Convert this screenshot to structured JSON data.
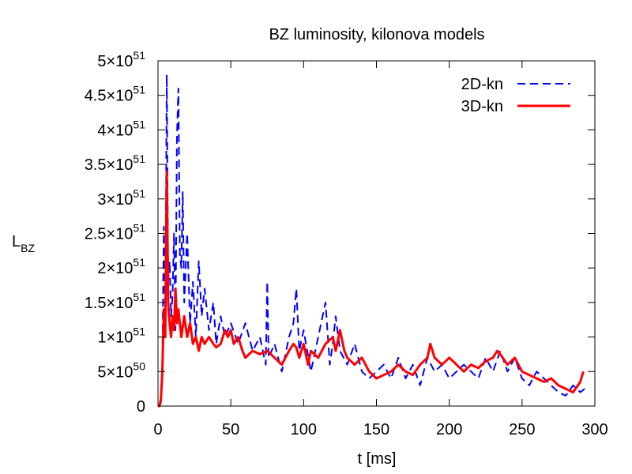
{
  "chart_data": {
    "type": "line",
    "title": "BZ luminosity, kilonova models",
    "xlabel": "t [ms]",
    "ylabel": {
      "main": "L",
      "sub": "BZ"
    },
    "xlim": [
      0,
      300
    ],
    "ylim": [
      0,
      5e+51
    ],
    "x_ticks": [
      {
        "value": 0,
        "label": "0"
      },
      {
        "value": 50,
        "label": "50"
      },
      {
        "value": 100,
        "label": "100"
      },
      {
        "value": 150,
        "label": "150"
      },
      {
        "value": 200,
        "label": "200"
      },
      {
        "value": 250,
        "label": "250"
      },
      {
        "value": 300,
        "label": "300"
      }
    ],
    "y_ticks": [
      {
        "value": 0,
        "mant": "0",
        "exp": ""
      },
      {
        "value": 5e+50,
        "mant": "5×10",
        "exp": "50"
      },
      {
        "value": 1e+51,
        "mant": "1×10",
        "exp": "51"
      },
      {
        "value": 1.5e+51,
        "mant": "1.5×10",
        "exp": "51"
      },
      {
        "value": 2e+51,
        "mant": "2×10",
        "exp": "51"
      },
      {
        "value": 2.5e+51,
        "mant": "2.5×10",
        "exp": "51"
      },
      {
        "value": 3e+51,
        "mant": "3×10",
        "exp": "51"
      },
      {
        "value": 3.5e+51,
        "mant": "3.5×10",
        "exp": "51"
      },
      {
        "value": 4e+51,
        "mant": "4×10",
        "exp": "51"
      },
      {
        "value": 4.5e+51,
        "mant": "4.5×10",
        "exp": "51"
      },
      {
        "value": 5e+51,
        "mant": "5×10",
        "exp": "51"
      }
    ],
    "grid": false,
    "legend_position": "top-right",
    "series": [
      {
        "name": "2D-kn",
        "color": "#0000ff",
        "dash": "dashed",
        "x": [
          0,
          1,
          2,
          3,
          4,
          5,
          6,
          7,
          8,
          9,
          10,
          11,
          12,
          13,
          14,
          15,
          16,
          17,
          18,
          20,
          22,
          24,
          26,
          28,
          30,
          32,
          35,
          38,
          40,
          43,
          46,
          50,
          55,
          60,
          65,
          70,
          74,
          75,
          76,
          80,
          85,
          90,
          93,
          95,
          97,
          100,
          105,
          110,
          115,
          118,
          120,
          122,
          125,
          130,
          135,
          140,
          145,
          150,
          155,
          160,
          165,
          170,
          175,
          180,
          185,
          190,
          195,
          200,
          205,
          210,
          215,
          220,
          225,
          230,
          235,
          240,
          245,
          250,
          255,
          260,
          265,
          270,
          275,
          280,
          285,
          290,
          293
        ],
        "y": [
          0,
          0,
          5e+49,
          6e+50,
          2.6e+51,
          1.2e+51,
          4.8e+51,
          1.8e+51,
          2.1e+51,
          1.3e+51,
          1.6e+51,
          2.5e+51,
          1.1e+51,
          3.9e+51,
          4.6e+51,
          2.2e+51,
          2e+51,
          3.1e+51,
          1.5e+51,
          2.5e+51,
          1.2e+51,
          1.8e+51,
          1e+51,
          2.1e+51,
          1.3e+51,
          1.7e+51,
          1.1e+51,
          1.5e+51,
          9e+50,
          1.3e+51,
          1e+51,
          1.2e+51,
          9e+50,
          1.2e+51,
          8e+50,
          1e+51,
          6e+50,
          1.8e+51,
          7e+50,
          9e+50,
          5e+50,
          1e+51,
          1.2e+51,
          1.7e+51,
          8e+50,
          1.1e+51,
          5e+50,
          1e+51,
          1.5e+51,
          6e+50,
          9e+50,
          1.3e+51,
          8e+50,
          6e+50,
          9e+50,
          5e+50,
          4e+50,
          5e+50,
          6e+50,
          4e+50,
          7e+50,
          4e+50,
          6e+50,
          3e+50,
          7e+50,
          5e+50,
          6e+50,
          4e+50,
          5e+50,
          6e+50,
          5e+50,
          4e+50,
          7e+50,
          5e+50,
          8e+50,
          5e+50,
          7e+50,
          4e+50,
          3e+50,
          5e+50,
          4e+50,
          3e+50,
          2e+50,
          1.5e+50,
          3e+50,
          2e+50,
          2.5e+50
        ]
      },
      {
        "name": "3D-kn",
        "color": "#ff0000",
        "dash": "solid",
        "x": [
          0,
          1,
          2,
          3,
          4,
          5,
          6,
          7,
          8,
          9,
          10,
          11,
          12,
          13,
          14,
          16,
          18,
          20,
          22,
          24,
          26,
          28,
          30,
          32,
          35,
          38,
          40,
          43,
          46,
          48,
          50,
          52,
          55,
          58,
          60,
          65,
          70,
          75,
          80,
          85,
          90,
          93,
          95,
          97,
          100,
          103,
          105,
          110,
          115,
          120,
          122,
          125,
          128,
          130,
          135,
          140,
          145,
          150,
          155,
          160,
          165,
          170,
          175,
          180,
          185,
          187,
          190,
          195,
          200,
          205,
          210,
          215,
          220,
          225,
          230,
          233,
          235,
          240,
          245,
          250,
          255,
          260,
          265,
          270,
          275,
          280,
          285,
          290,
          292
        ],
        "y": [
          0,
          0,
          1e+50,
          5e+50,
          1.4e+51,
          1e+51,
          3.4e+51,
          1.5e+51,
          1.2e+51,
          1e+51,
          1.3e+51,
          1.1e+51,
          1.7e+51,
          1.2e+51,
          1.4e+51,
          1e+51,
          1.3e+51,
          1e+51,
          1.2e+51,
          9e+50,
          1e+51,
          8e+50,
          1e+51,
          9e+50,
          1e+51,
          9e+50,
          8.5e+50,
          9e+50,
          1.1e+51,
          1e+51,
          1.1e+51,
          9e+50,
          1e+51,
          8e+50,
          7e+50,
          8e+50,
          7.5e+50,
          8e+50,
          7e+50,
          6e+50,
          8e+50,
          9e+50,
          8.5e+50,
          7e+50,
          9e+50,
          6e+50,
          8e+50,
          7e+50,
          9e+50,
          1e+51,
          8e+50,
          1.1e+51,
          8e+50,
          7e+50,
          6e+50,
          7e+50,
          5e+50,
          4e+50,
          4.5e+50,
          5e+50,
          6e+50,
          5e+50,
          4.5e+50,
          6e+50,
          7e+50,
          9e+50,
          7e+50,
          6e+50,
          7e+50,
          6e+50,
          5e+50,
          6e+50,
          5.5e+50,
          6.5e+50,
          7e+50,
          8e+50,
          7.5e+50,
          6e+50,
          7e+50,
          5e+50,
          4.5e+50,
          4e+50,
          3.5e+50,
          4e+50,
          3e+50,
          2.5e+50,
          2e+50,
          3.5e+50,
          5e+50
        ]
      }
    ]
  }
}
